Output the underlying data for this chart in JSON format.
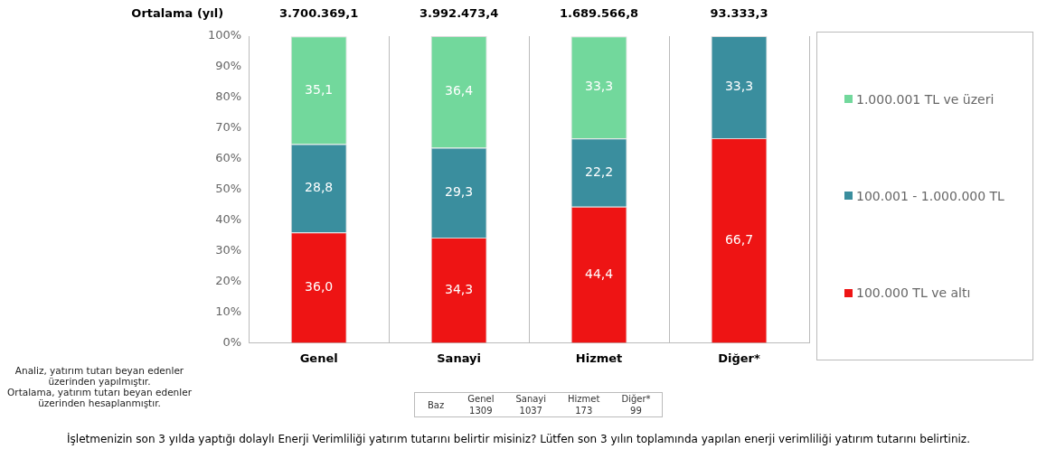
{
  "chart_data": {
    "type": "bar",
    "stacked": true,
    "categories": [
      "Genel",
      "Sanayi",
      "Hizmet",
      "Diğer*"
    ],
    "series": [
      {
        "name": "100.000 TL ve altı",
        "color": "#ee1414",
        "values": [
          36.0,
          34.3,
          44.4,
          66.7
        ],
        "value_labels": [
          "36,0",
          "34,3",
          "44,4",
          "66,7"
        ]
      },
      {
        "name": "100.001 - 1.000.000 TL",
        "color": "#3a8e9e",
        "values": [
          28.8,
          29.3,
          22.2,
          33.3
        ],
        "value_labels": [
          "28,8",
          "29,3",
          "22,2",
          "33,3"
        ]
      },
      {
        "name": "1.000.001 TL ve üzeri",
        "color": "#72d89c",
        "values": [
          35.1,
          36.4,
          33.3,
          null
        ],
        "value_labels": [
          "35,1",
          "36,4",
          "33,3",
          null
        ]
      }
    ],
    "ylim": [
      0,
      100
    ],
    "yticks": [
      {
        "value": 0,
        "label": "0%"
      },
      {
        "value": 10,
        "label": "10%"
      },
      {
        "value": 20,
        "label": "20%"
      },
      {
        "value": 30,
        "label": "30%"
      },
      {
        "value": 40,
        "label": "40%"
      },
      {
        "value": 50,
        "label": "50%"
      },
      {
        "value": 60,
        "label": "60%"
      },
      {
        "value": 70,
        "label": "70%"
      },
      {
        "value": 80,
        "label": "80%"
      },
      {
        "value": 90,
        "label": "90%"
      },
      {
        "value": 100,
        "label": "100%"
      }
    ],
    "grid": "x",
    "legend": "right",
    "annotations": [
      "Ortalama (yıl)",
      "3.700.369,1",
      "3.992.473,4",
      "1.689.566,8",
      "93.333,3",
      "Analiz, yatırım tutarı beyan edenler üzerinden yapılmıştır.",
      "Ortalama, yatırım tutarı beyan edenler üzerinden hesaplanmıştır.",
      "İşletmenizin son 3 yılda yaptığı dolaylı Enerji Verimliliği yatırım tutarını belirtir misiniz? Lütfen son 3 yılın toplamında yapılan enerji verimliliği yatırım tutarını belirtiniz.",
      "Baz",
      "Genel",
      "Sanayi",
      "Hizmet",
      "Diğer*",
      "1309",
      "1037",
      "173",
      "99"
    ]
  }
}
